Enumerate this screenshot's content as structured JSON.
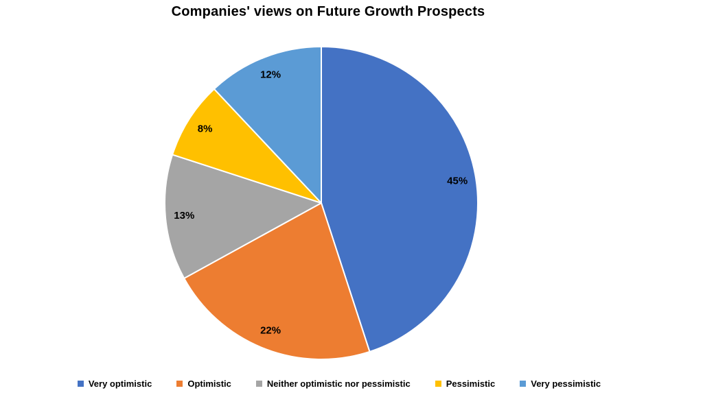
{
  "chart_data": {
    "type": "pie",
    "title": "Companies' views on Future Growth Prospects",
    "categories": [
      "Very optimistic",
      "Optimistic",
      "Neither optimistic nor pessimistic",
      "Pessimistic",
      "Very pessimistic"
    ],
    "values": [
      45,
      22,
      13,
      8,
      12
    ],
    "data_labels": [
      "45%",
      "22%",
      "13%",
      "8%",
      "12%"
    ],
    "colors": [
      "#4472C4",
      "#ED7D31",
      "#A5A5A5",
      "#FFC000",
      "#5B9BD5"
    ],
    "slice_border_color": "#FFFFFF",
    "label_color": "#000000",
    "start_angle_deg": 0,
    "direction": "clockwise",
    "legend_position": "bottom"
  }
}
